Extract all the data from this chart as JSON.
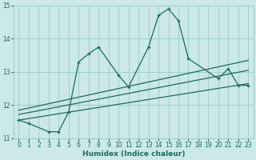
{
  "xlabel": "Humidex (Indice chaleur)",
  "bg_color": "#cce8e8",
  "grid_color": "#99cccc",
  "line_color": "#1a6b5e",
  "xlim": [
    -0.5,
    23.5
  ],
  "ylim": [
    11,
    15
  ],
  "xticks": [
    0,
    1,
    2,
    3,
    4,
    5,
    6,
    7,
    8,
    9,
    10,
    11,
    12,
    13,
    14,
    15,
    16,
    17,
    18,
    19,
    20,
    21,
    22,
    23
  ],
  "yticks": [
    11,
    12,
    13,
    14,
    15
  ],
  "main_x": [
    0,
    1,
    3,
    4,
    5,
    6,
    7,
    8,
    10,
    11,
    13,
    14,
    15,
    16,
    17,
    20,
    21,
    22,
    23
  ],
  "main_y": [
    11.55,
    11.45,
    11.2,
    11.2,
    11.8,
    13.3,
    13.55,
    13.75,
    12.9,
    12.55,
    13.75,
    14.7,
    14.9,
    14.55,
    13.4,
    12.8,
    13.1,
    12.6,
    12.6
  ],
  "trend1_x": [
    0,
    23
  ],
  "trend1_y": [
    11.55,
    12.65
  ],
  "trend2_x": [
    0,
    23
  ],
  "trend2_y": [
    11.72,
    13.05
  ],
  "trend3_x": [
    0,
    23
  ],
  "trend3_y": [
    11.85,
    13.35
  ]
}
